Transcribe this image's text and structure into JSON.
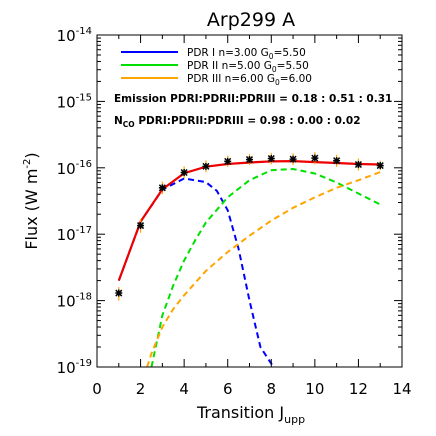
{
  "chart_data": {
    "type": "line",
    "title": "Arp299 A",
    "xlabel_main": "Transition J",
    "xlabel_sub": "upp",
    "ylabel_main": "Flux (W m",
    "ylabel_sup": "-2",
    "ylabel_close": ")",
    "xlim": [
      0,
      14
    ],
    "ylim": [
      1e-19,
      1e-14
    ],
    "yscale": "log",
    "grid": false,
    "legend_position": "top-left",
    "x_ticks": [
      "0",
      "2",
      "4",
      "6",
      "8",
      "10",
      "12",
      "14"
    ],
    "y_ticks": [
      {
        "value": 1e-19,
        "base": "10",
        "exp": "-19"
      },
      {
        "value": 1e-18,
        "base": "10",
        "exp": "-18"
      },
      {
        "value": 1e-17,
        "base": "10",
        "exp": "-17"
      },
      {
        "value": 1e-16,
        "base": "10",
        "exp": "-16"
      },
      {
        "value": 1e-15,
        "base": "10",
        "exp": "-15"
      },
      {
        "value": 1e-14,
        "base": "10",
        "exp": "-14"
      }
    ],
    "legend": [
      {
        "label": "PDR I  n=3.00  G",
        "sub": "0",
        "tail": "=5.50",
        "color": "#0000ff"
      },
      {
        "label": "PDR II  n=5.00  G",
        "sub": "0",
        "tail": "=5.50",
        "color": "#00e000"
      },
      {
        "label": "PDR III  n=6.00  G",
        "sub": "0",
        "tail": "=6.00",
        "color": "#ffa500"
      }
    ],
    "annotations": {
      "emission": "Emission  PDRI:PDRII:PDRIII  =  0.18 : 0.51 : 0.31",
      "nco_main": "N",
      "nco_sub": "CO",
      "nco_rest": "  PDRI:PDRII:PDRIII  =  0.98 : 0.00 : 0.02"
    },
    "observed": {
      "name": "observed",
      "color": "#000000",
      "errorbar_color": "#ffa500",
      "x": [
        1,
        2,
        3,
        4,
        5,
        6,
        7,
        8,
        9,
        10,
        11,
        12,
        13
      ],
      "y": [
        1.3e-18,
        1.35e-17,
        5e-17,
        8.5e-17,
        1.05e-16,
        1.25e-16,
        1.33e-16,
        1.38e-16,
        1.35e-16,
        1.4e-16,
        1.28e-16,
        1.12e-16,
        1.08e-16
      ],
      "err_low": [
        1e-18,
        1.05e-17,
        4e-17,
        7e-17,
        8.6e-17,
        1.03e-16,
        1.1e-16,
        1.13e-16,
        1.1e-16,
        1.13e-16,
        1.03e-16,
        9.1e-17,
        9.2e-17
      ],
      "err_high": [
        1.6e-18,
        1.7e-17,
        6.2e-17,
        1.05e-16,
        1.29e-16,
        1.52e-16,
        1.62e-16,
        1.68e-16,
        1.65e-16,
        1.72e-16,
        1.57e-16,
        1.38e-16,
        1.28e-16
      ]
    },
    "models": [
      {
        "name": "PDR I",
        "color": "#0000ff",
        "style": "dashed",
        "x": [
          1,
          2,
          3,
          4,
          5,
          5.5,
          6,
          6.5,
          7,
          7.5,
          8.1
        ],
        "y": [
          2e-18,
          1.55e-17,
          4.7e-17,
          6.9e-17,
          6.1e-17,
          4.5e-17,
          2.3e-17,
          6e-18,
          1e-18,
          2e-19,
          1e-19
        ]
      },
      {
        "name": "PDR II",
        "color": "#00e000",
        "style": "dashed",
        "x": [
          2.5,
          3,
          3.5,
          4,
          4.5,
          5,
          6,
          7,
          8,
          9,
          10,
          11,
          12,
          13
        ],
        "y": [
          1e-19,
          6e-19,
          1.7e-18,
          4e-18,
          8e-18,
          1.5e-17,
          3.6e-17,
          6.5e-17,
          9.2e-17,
          9.6e-17,
          8.2e-17,
          6e-17,
          4.1e-17,
          2.8e-17
        ]
      },
      {
        "name": "PDR III",
        "color": "#ffa500",
        "style": "dashed",
        "x": [
          2.3,
          2.5,
          3,
          3.5,
          4,
          5,
          6,
          7,
          8,
          9,
          10,
          11,
          12,
          13
        ],
        "y": [
          1e-19,
          1.6e-19,
          4e-19,
          7.5e-19,
          1.2e-18,
          2.8e-18,
          5.4e-18,
          9.5e-18,
          1.6e-17,
          2.5e-17,
          3.6e-17,
          5e-17,
          6.5e-17,
          8.6e-17
        ]
      },
      {
        "name": "total",
        "color": "#ee0000",
        "style": "solid",
        "x": [
          1,
          2,
          3,
          4,
          5,
          6,
          7,
          8,
          9,
          10,
          11,
          12,
          13
        ],
        "y": [
          2e-18,
          1.55e-17,
          4.75e-17,
          8.3e-17,
          1.04e-16,
          1.14e-16,
          1.2e-16,
          1.25e-16,
          1.26e-16,
          1.22e-16,
          1.18e-16,
          1.14e-16,
          1.12e-16
        ]
      }
    ]
  }
}
